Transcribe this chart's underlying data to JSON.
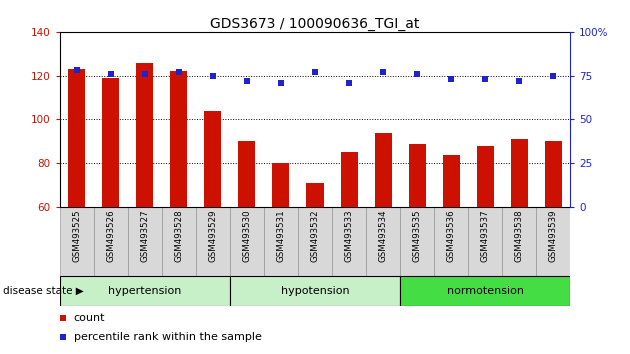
{
  "title": "GDS3673 / 100090636_TGI_at",
  "samples": [
    "GSM493525",
    "GSM493526",
    "GSM493527",
    "GSM493528",
    "GSM493529",
    "GSM493530",
    "GSM493531",
    "GSM493532",
    "GSM493533",
    "GSM493534",
    "GSM493535",
    "GSM493536",
    "GSM493537",
    "GSM493538",
    "GSM493539"
  ],
  "count_values": [
    123,
    119,
    126,
    122,
    104,
    90,
    80,
    71,
    85,
    94,
    89,
    84,
    88,
    91,
    90
  ],
  "percentile_values": [
    78,
    76,
    76,
    77,
    75,
    72,
    71,
    77,
    71,
    77,
    76,
    73,
    73,
    72,
    75
  ],
  "left_ylim": [
    60,
    140
  ],
  "right_ylim": [
    0,
    100
  ],
  "left_yticks": [
    60,
    80,
    100,
    120,
    140
  ],
  "right_yticks": [
    0,
    25,
    50,
    75,
    100
  ],
  "right_yticklabels": [
    "0",
    "25",
    "50",
    "75",
    "100%"
  ],
  "groups": [
    {
      "label": "hypertension",
      "start": 0,
      "end": 5
    },
    {
      "label": "hypotension",
      "start": 5,
      "end": 10
    },
    {
      "label": "normotension",
      "start": 10,
      "end": 15
    }
  ],
  "group_colors": [
    "#c8f0c8",
    "#c8f0c8",
    "#44dd44"
  ],
  "bar_color": "#cc1100",
  "dot_color": "#2222cc",
  "bar_width": 0.5,
  "box_color": "#d8d8d8",
  "legend_count_label": "count",
  "legend_pct_label": "percentile rank within the sample",
  "disease_state_label": "disease state"
}
